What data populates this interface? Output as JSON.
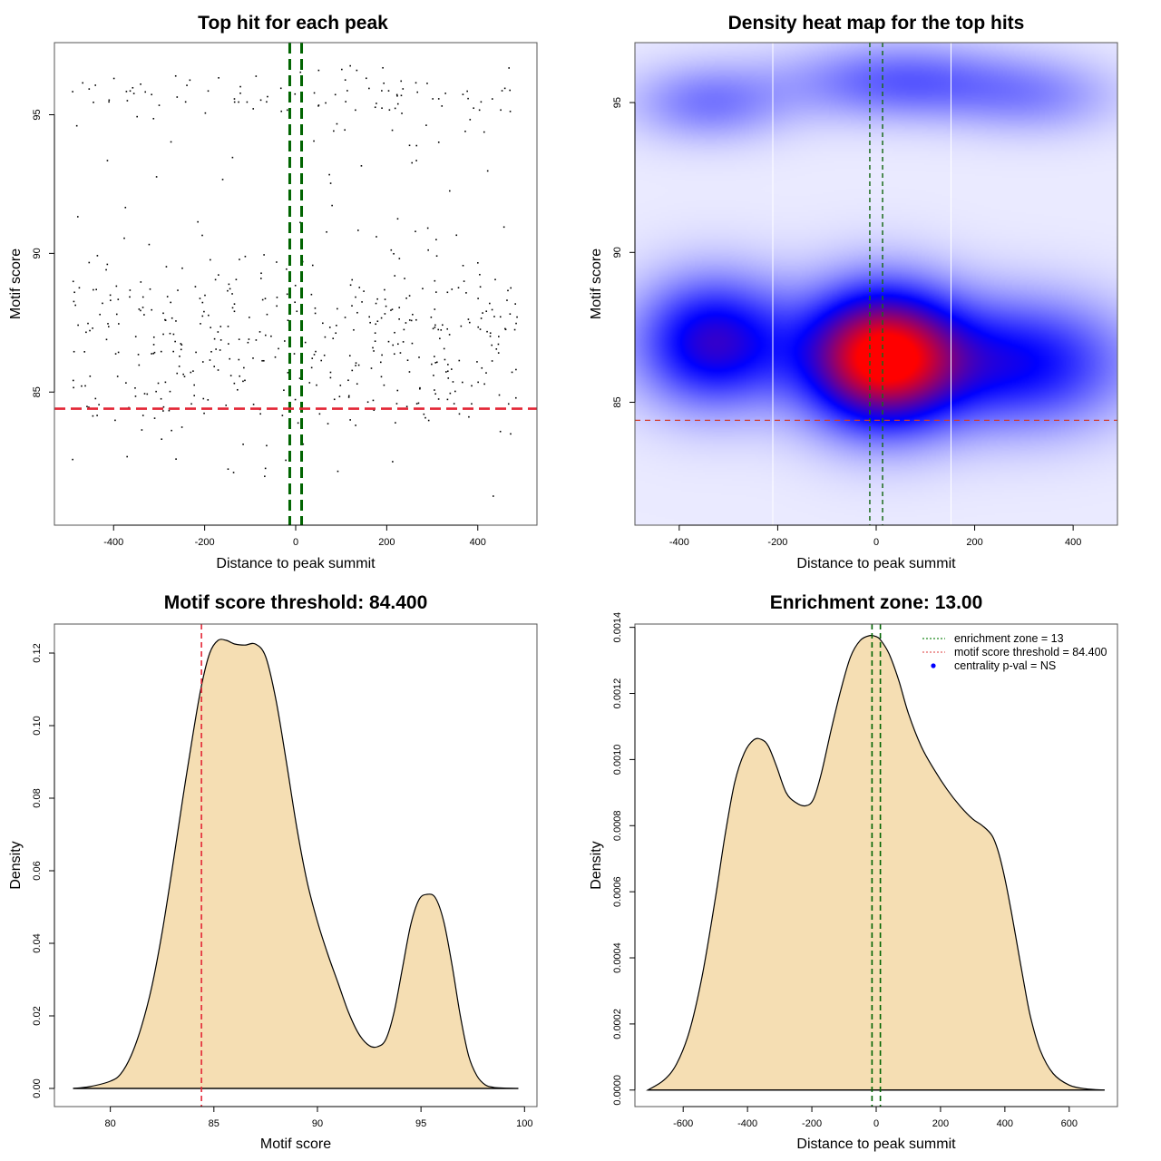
{
  "chart_data": [
    {
      "id": "scatter",
      "type": "scatter",
      "title": "Top hit for each peak",
      "xlabel": "Distance to peak summit",
      "ylabel": "Motif score",
      "xlim": [
        -530,
        530
      ],
      "ylim": [
        80.2,
        97.6
      ],
      "xticks": [
        -400,
        -200,
        0,
        200,
        400
      ],
      "yticks": [
        85,
        90,
        95
      ],
      "enrichment_zone": 13,
      "threshold": 84.4,
      "colors": {
        "points": "#000000",
        "zone": "#006400",
        "threshold": "#e32636"
      },
      "point_cloud": {
        "note": "approximate reconstruction of ~550 points; uniform in x over [-490,490], score clusters near 84-89 and 95-96.6",
        "n": 560,
        "seed": 7
      }
    },
    {
      "id": "heatmap",
      "type": "heatmap",
      "title": "Density heat map for the top hits",
      "xlabel": "Distance to peak summit",
      "ylabel": "Motif score",
      "xlim": [
        -490,
        490
      ],
      "ylim": [
        80.9,
        97.0
      ],
      "xticks": [
        -400,
        -200,
        0,
        200,
        400
      ],
      "yticks": [
        85,
        90,
        95
      ],
      "enrichment_zone": 13,
      "threshold": 84.4,
      "bin_boundaries": [
        -210,
        152
      ],
      "colorscale": [
        "#ffffff",
        "#0000ff",
        "#ff0000"
      ],
      "density_modes": [
        {
          "x": 10,
          "y": 86.5,
          "intensity": 1.0,
          "sx": 110,
          "sy": 1.6
        },
        {
          "x": -330,
          "y": 87.0,
          "intensity": 0.55,
          "sx": 110,
          "sy": 1.5
        },
        {
          "x": 300,
          "y": 86.3,
          "intensity": 0.45,
          "sx": 150,
          "sy": 1.5
        },
        {
          "x": 50,
          "y": 95.7,
          "intensity": 0.28,
          "sx": 160,
          "sy": 0.9
        },
        {
          "x": -340,
          "y": 95.0,
          "intensity": 0.22,
          "sx": 110,
          "sy": 0.9
        },
        {
          "x": 330,
          "y": 95.2,
          "intensity": 0.16,
          "sx": 120,
          "sy": 0.9
        }
      ]
    },
    {
      "id": "score-density",
      "type": "area",
      "title": "Motif score threshold: 84.400",
      "xlabel": "Motif score",
      "ylabel": "Density",
      "xlim": [
        77.3,
        100.6
      ],
      "ylim": [
        -0.005,
        0.128
      ],
      "xticks": [
        80,
        85,
        90,
        95,
        100
      ],
      "yticks": [
        0.0,
        0.02,
        0.04,
        0.06,
        0.08,
        0.1,
        0.12
      ],
      "ytick_labels": [
        "0.00",
        "0.02",
        "0.04",
        "0.06",
        "0.08",
        "0.10",
        "0.12"
      ],
      "threshold": 84.4,
      "fill": "#f5deb3",
      "x": [
        78.2,
        79.0,
        80.0,
        80.5,
        81.0,
        81.5,
        82.0,
        82.5,
        83.0,
        83.5,
        84.0,
        84.4,
        84.8,
        85.2,
        85.6,
        86.0,
        86.5,
        87.0,
        87.5,
        88.0,
        88.5,
        89.0,
        89.5,
        90.0,
        90.5,
        91.0,
        91.5,
        92.0,
        92.5,
        92.9,
        93.3,
        93.7,
        94.1,
        94.5,
        94.9,
        95.3,
        95.7,
        96.1,
        96.5,
        96.9,
        97.3,
        97.7,
        98.1,
        98.5,
        99.0,
        99.7
      ],
      "y": [
        0.0,
        0.0005,
        0.002,
        0.004,
        0.009,
        0.017,
        0.028,
        0.043,
        0.061,
        0.08,
        0.098,
        0.111,
        0.12,
        0.1235,
        0.1235,
        0.1225,
        0.1222,
        0.1225,
        0.119,
        0.107,
        0.09,
        0.072,
        0.057,
        0.046,
        0.037,
        0.029,
        0.021,
        0.015,
        0.0118,
        0.0115,
        0.0135,
        0.021,
        0.033,
        0.045,
        0.052,
        0.0535,
        0.0525,
        0.046,
        0.034,
        0.02,
        0.009,
        0.0035,
        0.001,
        0.0003,
        0.0001,
        0.0
      ],
      "colors": {
        "threshold": "#e32636",
        "outline": "#000000"
      }
    },
    {
      "id": "distance-density",
      "type": "area",
      "title": "Enrichment zone: 13.00",
      "xlabel": "Distance to peak summit",
      "ylabel": "Density",
      "xlim": [
        -750,
        750
      ],
      "ylim": [
        -5e-05,
        0.00141
      ],
      "xticks": [
        -600,
        -400,
        -200,
        0,
        200,
        400,
        600
      ],
      "yticks": [
        0.0,
        0.0002,
        0.0004,
        0.0006,
        0.0008,
        0.001,
        0.0012,
        0.0014
      ],
      "ytick_labels": [
        "0.0000",
        "0.0002",
        "0.0004",
        "0.0006",
        "0.0008",
        "0.0010",
        "0.0012",
        "0.0014"
      ],
      "enrichment_zone": 13,
      "fill": "#f5deb3",
      "x": [
        -710,
        -660,
        -620,
        -580,
        -540,
        -500,
        -470,
        -440,
        -410,
        -380,
        -355,
        -335,
        -310,
        -280,
        -250,
        -220,
        -195,
        -170,
        -140,
        -110,
        -80,
        -50,
        -20,
        0,
        15,
        40,
        70,
        100,
        140,
        180,
        220,
        260,
        300,
        330,
        360,
        380,
        400,
        420,
        440,
        460,
        480,
        510,
        550,
        600,
        650,
        710
      ],
      "y": [
        0.0,
        3e-05,
        8e-05,
        0.00018,
        0.00035,
        0.00058,
        0.00077,
        0.00093,
        0.00102,
        0.00106,
        0.00106,
        0.00104,
        0.00098,
        0.0009,
        0.00087,
        0.00086,
        0.00088,
        0.00096,
        0.00109,
        0.00121,
        0.00131,
        0.00136,
        0.001375,
        0.001372,
        0.00136,
        0.00132,
        0.00124,
        0.00114,
        0.00104,
        0.00097,
        0.00091,
        0.00086,
        0.00082,
        0.0008,
        0.00077,
        0.00072,
        0.00064,
        0.00054,
        0.00043,
        0.00032,
        0.00022,
        0.00012,
        5e-05,
        1.5e-05,
        4e-06,
        0.0
      ],
      "colors": {
        "zone": "#006400",
        "outline": "#000000"
      },
      "legend": {
        "position": "top-right",
        "items": [
          {
            "label": "enrichment zone = 13",
            "symbol": "dotted-line",
            "color": "#228b22"
          },
          {
            "label": "motif score threshold = 84.400",
            "symbol": "dotted-line",
            "color": "#e36060"
          },
          {
            "label": "centrality p-val = NS",
            "symbol": "dot",
            "color": "#0000ff"
          }
        ]
      }
    }
  ]
}
